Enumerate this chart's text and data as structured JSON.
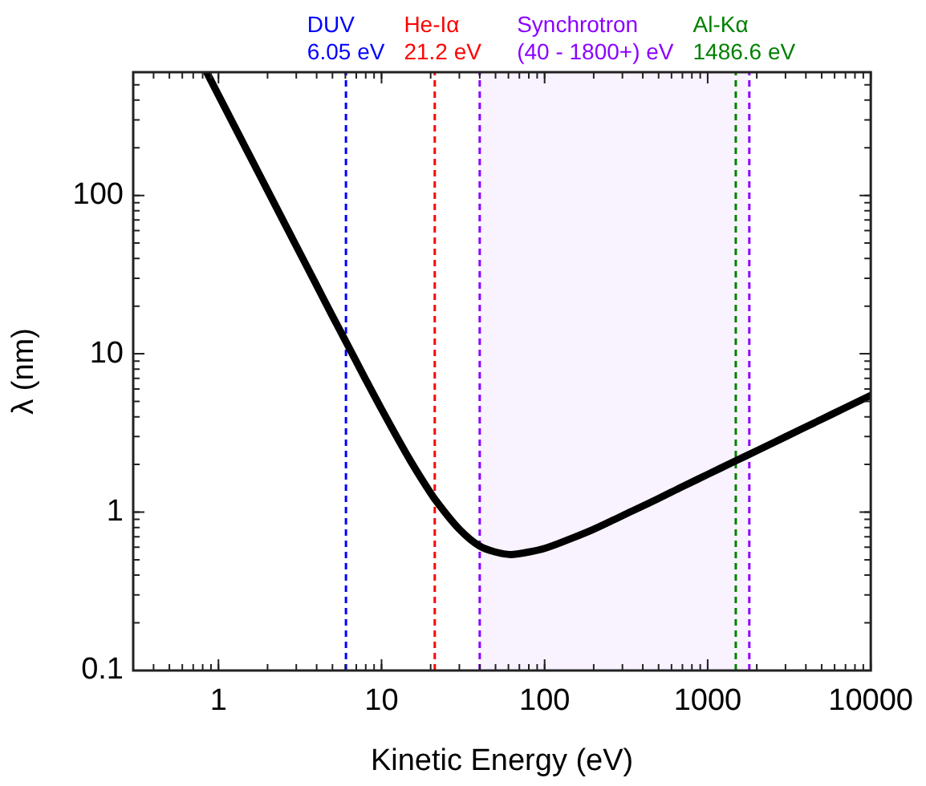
{
  "chart_data": {
    "type": "line",
    "xlabel": "Kinetic Energy (eV)",
    "ylabel": "λ (nm)",
    "x": [
      0.85,
      1,
      1.5,
      2,
      3,
      4,
      5,
      6.05,
      8,
      10,
      15,
      20,
      21.2,
      30,
      40,
      50,
      62,
      80,
      100,
      150,
      200,
      300,
      500,
      700,
      1000,
      1486.6,
      2000,
      3000,
      5000,
      7000,
      10000
    ],
    "series": [
      {
        "color": "#000000",
        "values": [
          595,
          430,
          191,
          107.6,
          47.9,
          27.0,
          17.3,
          11.9,
          6.87,
          4.47,
          2.12,
          1.32,
          1.21,
          0.78,
          0.61,
          0.56,
          0.54,
          0.56,
          0.59,
          0.69,
          0.78,
          0.95,
          1.22,
          1.45,
          1.73,
          2.11,
          2.44,
          2.99,
          3.86,
          4.57,
          5.46
        ]
      }
    ],
    "log": "xy",
    "xlim": [
      0.3,
      10000
    ],
    "xticks": [
      1,
      10,
      100,
      1000,
      10000
    ],
    "ylim": [
      0.1,
      600
    ],
    "yticks": [
      0.1,
      1,
      10,
      100
    ],
    "grid": false,
    "legend": false,
    "marker": "none",
    "line_style": "solid",
    "ref_lines": [
      {
        "axis": "x",
        "value": 6.05,
        "label": "DUV\n6.05 eV",
        "color": "#0000ff",
        "line_style": "dashed"
      },
      {
        "axis": "x",
        "value": 21.2,
        "label": "He-Iα\n21.2 eV",
        "color": "#ff0000",
        "line_style": "dashed"
      },
      {
        "axis": "x",
        "value": 1486.6,
        "label": "Al-Kα\n1486.6 eV",
        "color": "#008000",
        "line_style": "dashed"
      },
      {
        "axis": "x",
        "value": 40,
        "color": "#8b00ff",
        "line_style": "dashed"
      },
      {
        "axis": "x",
        "value": 1800,
        "color": "#8b00ff",
        "line_style": "dashed"
      }
    ],
    "bands": [
      {
        "axis": "x",
        "from": 40,
        "to": 1800,
        "label": "Synchrotron\n(40 - 1800+) eV",
        "color": "#8b00ff"
      }
    ]
  }
}
